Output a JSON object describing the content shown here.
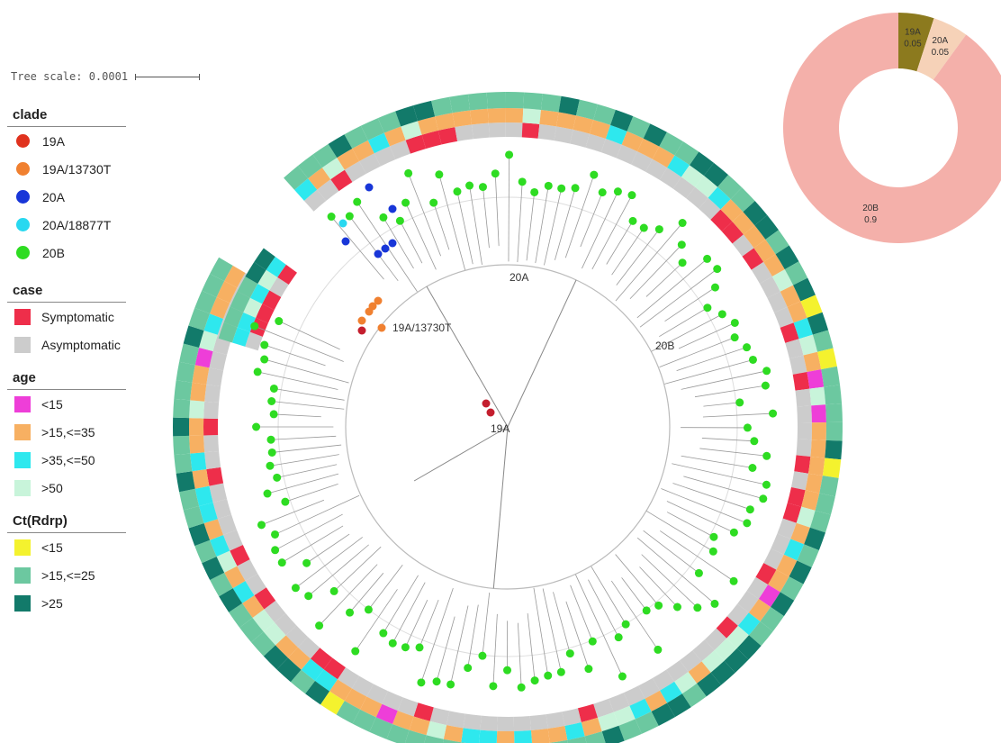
{
  "tree_scale": {
    "label": "Tree scale: 0.0001"
  },
  "legends": {
    "clade": {
      "title": "clade",
      "items": [
        {
          "label": "19A",
          "color": "#e0321e"
        },
        {
          "label": "19A/13730T",
          "color": "#f08030"
        },
        {
          "label": "20A",
          "color": "#1836d8"
        },
        {
          "label": "20A/18877T",
          "color": "#28d8f0"
        },
        {
          "label": "20B",
          "color": "#2edc22"
        }
      ]
    },
    "case": {
      "title": "case",
      "items": [
        {
          "label": "Symptomatic",
          "color": "#ee2e4a"
        },
        {
          "label": "Asymptomatic",
          "color": "#cccccc"
        }
      ]
    },
    "age": {
      "title": "age",
      "items": [
        {
          "label": "<15",
          "color": "#ee3ed8"
        },
        {
          "label": ">15,<=35",
          "color": "#f7b062"
        },
        {
          "label": ">35,<=50",
          "color": "#2ee8ee"
        },
        {
          "label": ">50",
          "color": "#c8f4da"
        }
      ]
    },
    "ct": {
      "title": "Ct(Rdrp)",
      "items": [
        {
          "label": "<15",
          "color": "#f4f22e"
        },
        {
          "label": ">15,<=25",
          "color": "#6cc8a0"
        },
        {
          "label": ">25",
          "color": "#127a6a"
        }
      ]
    }
  },
  "tree_labels": {
    "clade_20A": "20A",
    "clade_19A_13730T": "19A/13730T",
    "clade_20B": "20B",
    "clade_19A": "19A"
  },
  "donut": {
    "slices": [
      {
        "name": "19A",
        "value": 0.05,
        "label": "0.05",
        "color": "#8c7a1e"
      },
      {
        "name": "20A",
        "value": 0.05,
        "label": "0.05",
        "color": "#f6d2b8"
      },
      {
        "name": "20B",
        "value": 0.9,
        "label": "0.9",
        "color": "#f4b0aa"
      }
    ]
  }
}
